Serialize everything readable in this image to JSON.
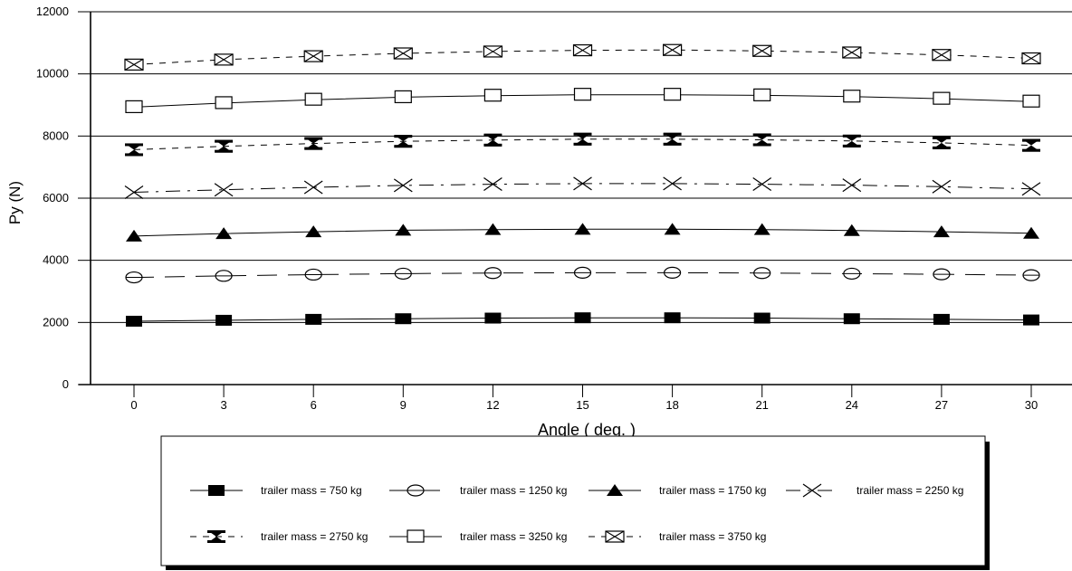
{
  "chart_data": {
    "type": "line",
    "title": "",
    "xlabel": "Angle ( deg. )",
    "ylabel": "Py (N)",
    "x": [
      0,
      3,
      6,
      9,
      12,
      15,
      18,
      21,
      24,
      27,
      30
    ],
    "xlim": [
      0,
      30
    ],
    "ylim": [
      0,
      12000
    ],
    "yticks": [
      0,
      2000,
      4000,
      6000,
      8000,
      10000,
      12000
    ],
    "grid": "horizontal",
    "legend_position": "bottom",
    "series": [
      {
        "name": "trailer mass = 750 kg",
        "marker": "filled-square",
        "dash": "solid",
        "values": [
          2040,
          2070,
          2100,
          2120,
          2140,
          2150,
          2150,
          2140,
          2120,
          2100,
          2080
        ]
      },
      {
        "name": "trailer mass = 1250 kg",
        "marker": "open-circle",
        "dash": "longdash",
        "values": [
          3450,
          3500,
          3540,
          3570,
          3590,
          3600,
          3600,
          3590,
          3570,
          3550,
          3520
        ]
      },
      {
        "name": "trailer mass = 1750 kg",
        "marker": "filled-triangle",
        "dash": "solid",
        "values": [
          4780,
          4860,
          4920,
          4970,
          4990,
          5000,
          5000,
          4990,
          4960,
          4920,
          4870
        ]
      },
      {
        "name": "trailer mass = 2250 kg",
        "marker": "x-cross",
        "dash": "dashdot",
        "values": [
          6190,
          6270,
          6350,
          6410,
          6450,
          6470,
          6470,
          6450,
          6420,
          6370,
          6300
        ]
      },
      {
        "name": "trailer mass = 2750 kg",
        "marker": "hourglass",
        "dash": "dash",
        "values": [
          7560,
          7670,
          7760,
          7830,
          7870,
          7900,
          7900,
          7880,
          7840,
          7780,
          7700
        ]
      },
      {
        "name": "trailer mass = 3250 kg",
        "marker": "open-square",
        "dash": "solid",
        "values": [
          8930,
          9060,
          9170,
          9250,
          9300,
          9330,
          9330,
          9310,
          9270,
          9200,
          9110
        ]
      },
      {
        "name": "trailer mass = 3750 kg",
        "marker": "hourglass-box",
        "dash": "dash",
        "values": [
          10300,
          10460,
          10570,
          10660,
          10720,
          10760,
          10770,
          10740,
          10690,
          10610,
          10500
        ]
      }
    ]
  }
}
